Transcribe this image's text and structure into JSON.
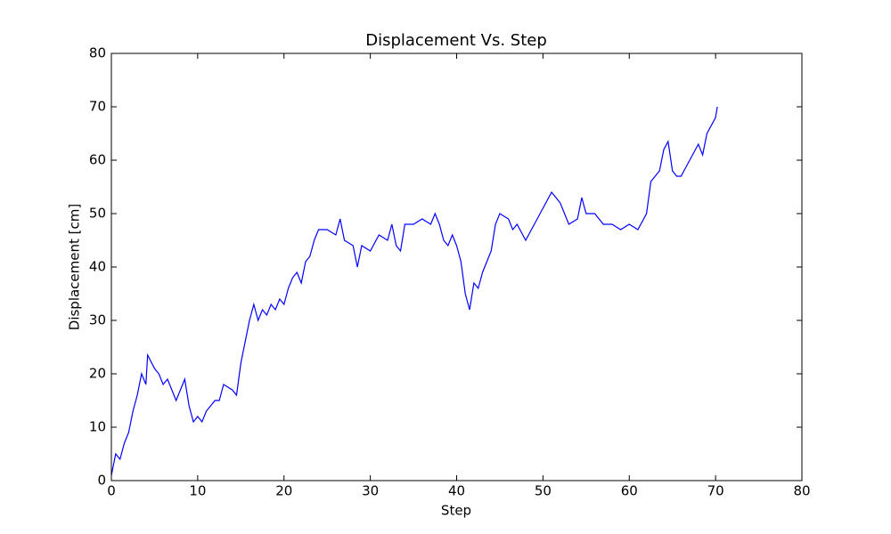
{
  "chart_data": {
    "type": "line",
    "title": "Displacement Vs. Step",
    "x_label": "Step",
    "y_label": "Displacement [cm]",
    "x": [
      0,
      0.5,
      1,
      1.5,
      2,
      2.5,
      3,
      3.5,
      4,
      4.2,
      5,
      5.5,
      6,
      6.5,
      7,
      7.5,
      8,
      8.5,
      9,
      9.5,
      10,
      10.5,
      11,
      12,
      12.5,
      13,
      14,
      14.5,
      15,
      15.5,
      16,
      16.5,
      17,
      17.5,
      18,
      18.5,
      19,
      19.5,
      20,
      20.5,
      21,
      21.5,
      22,
      22.5,
      23,
      23.5,
      24,
      25,
      26,
      26.5,
      27,
      28,
      28.5,
      29,
      30,
      31,
      32,
      32.5,
      33,
      33.5,
      34,
      35,
      36,
      37,
      37.5,
      38,
      38.5,
      39,
      39.5,
      40,
      40.5,
      41,
      41.5,
      42,
      42.5,
      43,
      44,
      44.5,
      45,
      46,
      46.5,
      47,
      48,
      49,
      50,
      51,
      51.5,
      52,
      53,
      54,
      54.5,
      55,
      56,
      57,
      58,
      59,
      60,
      61,
      62,
      62.5,
      63,
      63.5,
      64,
      64.5,
      65,
      65.5,
      66,
      67,
      68,
      68.5,
      69,
      70,
      70.2
    ],
    "series": [
      {
        "name": "Displacement",
        "color": "#0000ff",
        "values": [
          1,
          5,
          4,
          7,
          9,
          13,
          16,
          20,
          18,
          23.5,
          21,
          20,
          18,
          19,
          17,
          15,
          17,
          19,
          14,
          11,
          12,
          11,
          13,
          15,
          15,
          18,
          17,
          16,
          22,
          26,
          30,
          33,
          30,
          32,
          31,
          33,
          32,
          34,
          33,
          36,
          38,
          39,
          37,
          41,
          42,
          45,
          47,
          47,
          46,
          49,
          45,
          44,
          40,
          44,
          43,
          46,
          45,
          48,
          44,
          43,
          48,
          48,
          49,
          48,
          50,
          48,
          45,
          44,
          46,
          44,
          41,
          35,
          32,
          37,
          36,
          39,
          43,
          48,
          50,
          49,
          47,
          48,
          45,
          48,
          51,
          54,
          53,
          52,
          48,
          49,
          53,
          50,
          50,
          48,
          48,
          47,
          48,
          47,
          50,
          56,
          57,
          58,
          62,
          63.5,
          58,
          57,
          57,
          60,
          63,
          61,
          65,
          68,
          70
        ]
      }
    ],
    "xlim": [
      0,
      80
    ],
    "ylim": [
      0,
      80
    ],
    "xticks": [
      0,
      10,
      20,
      30,
      40,
      50,
      60,
      70,
      80
    ],
    "yticks": [
      0,
      10,
      20,
      30,
      40,
      50,
      60,
      70,
      80
    ]
  }
}
